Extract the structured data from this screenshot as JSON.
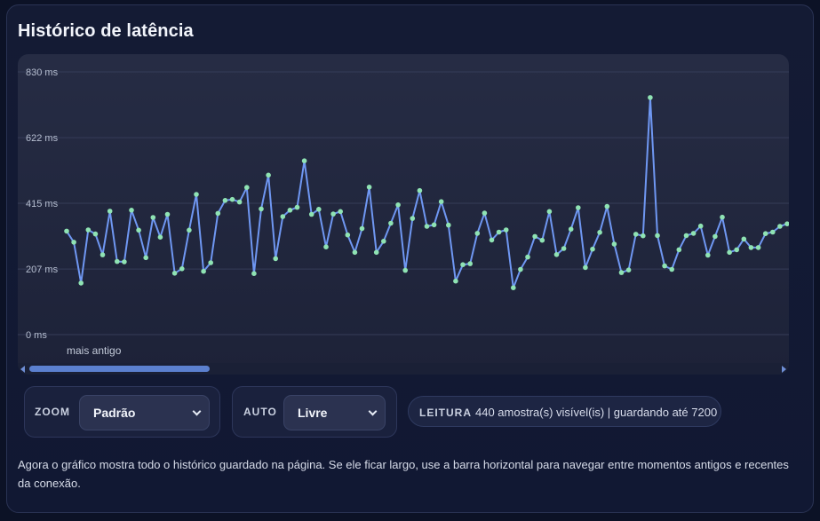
{
  "title": "Histórico de latência",
  "chart_data": {
    "type": "line",
    "ylim": [
      0,
      830
    ],
    "y_ticks": [
      "830 ms",
      "622 ms",
      "415 ms",
      "207 ms",
      "0 ms"
    ],
    "y_tick_values": [
      830,
      622,
      415,
      207,
      0
    ],
    "x_annotation": "mais antigo",
    "grid": true,
    "colors": {
      "line": "#6f97f2",
      "point": "#8fe3b3",
      "grid": "#353c58"
    },
    "values": [
      327,
      292,
      163,
      331,
      318,
      252,
      390,
      231,
      230,
      393,
      330,
      243,
      370,
      308,
      380,
      194,
      208,
      330,
      443,
      200,
      227,
      383,
      424,
      427,
      419,
      465,
      193,
      397,
      504,
      240,
      373,
      393,
      402,
      549,
      380,
      396,
      277,
      381,
      389,
      315,
      260,
      335,
      466,
      260,
      295,
      352,
      410,
      203,
      367,
      455,
      342,
      347,
      420,
      346,
      169,
      221,
      224,
      320,
      384,
      299,
      324,
      331,
      148,
      206,
      245,
      310,
      298,
      389,
      253,
      272,
      333,
      401,
      212,
      270,
      323,
      405,
      286,
      196,
      204,
      317,
      312,
      749,
      313,
      217,
      206,
      268,
      313,
      320,
      343,
      251,
      310,
      371,
      260,
      268,
      302,
      275,
      275,
      319,
      324,
      342,
      350,
      348,
      249
    ]
  },
  "controls": {
    "zoom": {
      "label": "ZOOM",
      "value": "Padrão"
    },
    "auto": {
      "label": "AUTO",
      "value": "Livre"
    }
  },
  "reading": {
    "label": "LEITURA",
    "text": "440 amostra(s) visível(is) | guardando até 7200"
  },
  "description": "Agora o gráfico mostra todo o histórico guardado na página. Se ele ficar largo, use a barra horizontal para navegar entre momentos antigos e recentes da conexão."
}
